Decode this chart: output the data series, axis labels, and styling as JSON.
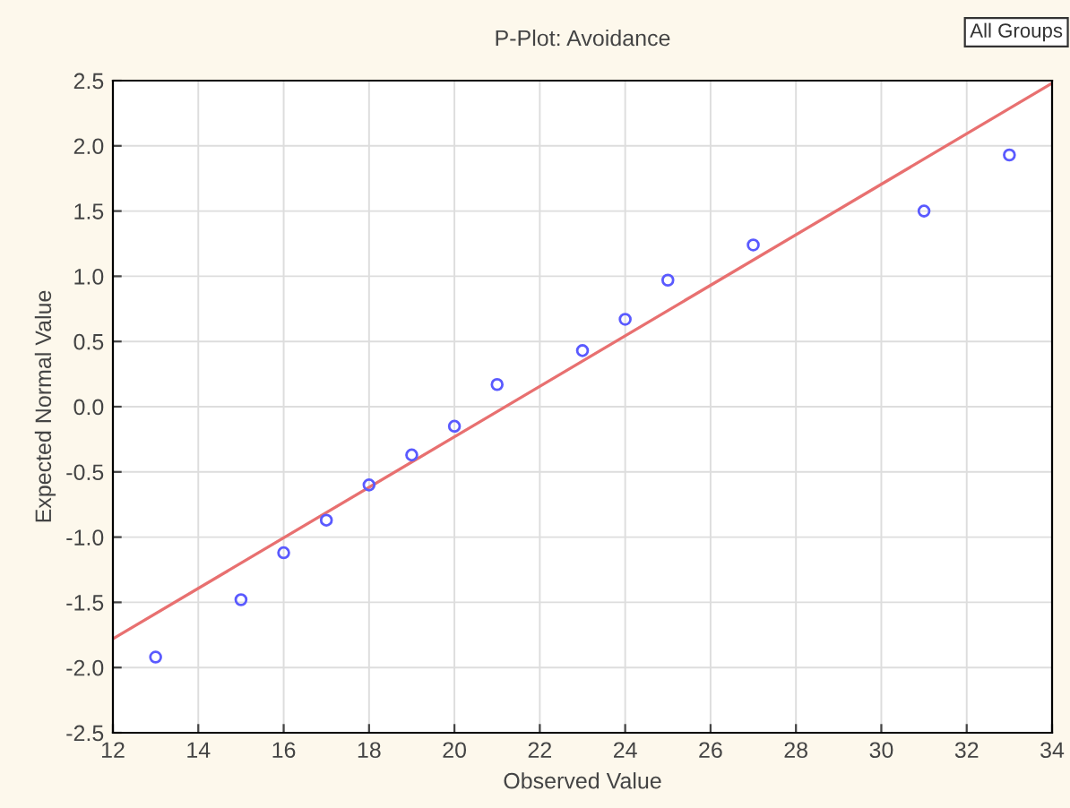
{
  "chart_data": {
    "type": "scatter",
    "title": "P-Plot: Avoidance",
    "xlabel": "Observed Value",
    "ylabel": "Expected Normal Value",
    "annotations": [
      "All Groups"
    ],
    "series": [
      {
        "color": "#5a5aff",
        "x": [
          13,
          15,
          16,
          17,
          18,
          19,
          20,
          21,
          23,
          24,
          25,
          27,
          31,
          33
        ],
        "values": [
          -1.92,
          -1.48,
          -1.12,
          -0.87,
          -0.6,
          -0.37,
          -0.15,
          0.17,
          0.43,
          0.67,
          0.97,
          1.24,
          1.5,
          1.93
        ],
        "marker": "circle"
      },
      {
        "type": "line",
        "color": "#e87070",
        "x": [
          12,
          34
        ],
        "values": [
          -1.78,
          2.48
        ],
        "line_style": "solid"
      }
    ],
    "xlim": [
      12,
      34
    ],
    "xticks": [
      12,
      14,
      16,
      18,
      20,
      22,
      24,
      26,
      28,
      30,
      32,
      34
    ],
    "ylim": [
      -2.5,
      2.5
    ],
    "yticks": [
      {
        "value": -2.5,
        "label": "-2.5"
      },
      {
        "value": -2.0,
        "label": "-2.0"
      },
      {
        "value": -1.5,
        "label": "-1.5"
      },
      {
        "value": -1.0,
        "label": "-1.0"
      },
      {
        "value": -0.5,
        "label": "-0.5"
      },
      {
        "value": 0.0,
        "label": "0.0"
      },
      {
        "value": 0.5,
        "label": "0.5"
      },
      {
        "value": 1.0,
        "label": "1.0"
      },
      {
        "value": 1.5,
        "label": "1.5"
      },
      {
        "value": 2.0,
        "label": "2.0"
      },
      {
        "value": 2.5,
        "label": "2.5"
      }
    ],
    "grid": true
  }
}
